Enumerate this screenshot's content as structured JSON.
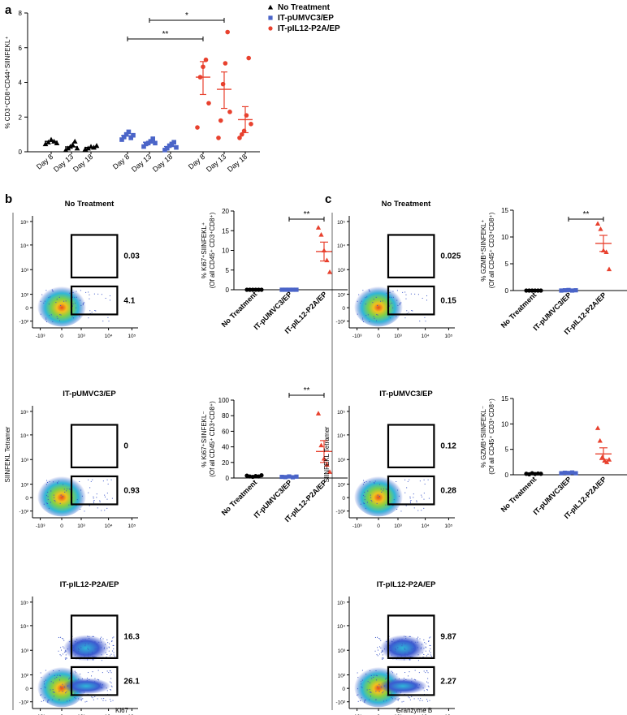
{
  "colors": {
    "no_treatment": "#000000",
    "pumvc3": "#4a64c8",
    "pil12": "#e8412e"
  },
  "panel_a": {
    "label": "a",
    "ylabel": "% CD3⁺CD8⁺CD44⁺SIINFEKL⁺",
    "legend": [
      {
        "name": "No Treatment",
        "marker": "triangle",
        "color": "#000000"
      },
      {
        "name": "IT-pUMVC3/EP",
        "marker": "square",
        "color": "#4a64c8"
      },
      {
        "name": "IT-pIL12-P2A/EP",
        "marker": "circle",
        "color": "#e8412e"
      }
    ],
    "significance": [
      {
        "label": "**",
        "from": "IT-pUMVC3/EP Day 8",
        "to": "IT-pIL12-P2A/EP Day 8"
      },
      {
        "label": "*",
        "from": "IT-pUMVC3/EP Day 13",
        "to": "IT-pIL12-P2A/EP Day 13"
      }
    ]
  },
  "panel_b": {
    "label": "b",
    "y_axis_label": "SIINFEKL Tetramer",
    "x_axis_label": "Ki67",
    "flow": [
      {
        "title": "No Treatment",
        "upper_gate": "0.03",
        "lower_gate": "4.1"
      },
      {
        "title": "IT-pUMVC3/EP",
        "upper_gate": "0",
        "lower_gate": "0.93"
      },
      {
        "title": "IT-pIL12-P2A/EP",
        "upper_gate": "16.3",
        "lower_gate": "26.1"
      }
    ],
    "sig_label": "**"
  },
  "panel_c": {
    "label": "c",
    "y_axis_label": "SIINFEKL Tetramer",
    "x_axis_label": "Granzyme B",
    "flow": [
      {
        "title": "No Treatment",
        "upper_gate": "0.025",
        "lower_gate": "0.15"
      },
      {
        "title": "IT-pUMVC3/EP",
        "upper_gate": "0.12",
        "lower_gate": "0.28"
      },
      {
        "title": "IT-pIL12-P2A/EP",
        "upper_gate": "9.87",
        "lower_gate": "2.27"
      }
    ],
    "sig_label": "**"
  },
  "flow_ticks": {
    "y": [
      "10⁵",
      "10⁴",
      "10³",
      "10²",
      "0",
      "-10²"
    ],
    "x": [
      "-10³",
      "0",
      "10³",
      "10⁴",
      "10⁵"
    ]
  },
  "chart_data": [
    {
      "id": "a",
      "type": "scatter",
      "title": "",
      "ylabel": "% CD3⁺CD8⁺CD44⁺SIINFEKL⁺",
      "ylim": [
        0,
        8
      ],
      "yticks": [
        0,
        2,
        4,
        6,
        8
      ],
      "groups": [
        {
          "series": "No Treatment",
          "category": "Day 8",
          "points": [
            0.45,
            0.55,
            0.7,
            0.6,
            0.5
          ],
          "mean": 0.6
        },
        {
          "series": "No Treatment",
          "category": "Day 13",
          "points": [
            0.1,
            0.2,
            0.3,
            0.4,
            0.6,
            0.2
          ],
          "mean": 0.28
        },
        {
          "series": "No Treatment",
          "category": "Day 18",
          "points": [
            0.15,
            0.2,
            0.3,
            0.25,
            0.35
          ],
          "mean": 0.25
        },
        {
          "series": "IT-pUMVC3/EP",
          "category": "Day 8",
          "points": [
            0.7,
            0.85,
            1.0,
            1.15,
            0.8,
            0.95
          ],
          "mean": 0.92
        },
        {
          "series": "IT-pUMVC3/EP",
          "category": "Day 13",
          "points": [
            0.3,
            0.45,
            0.5,
            0.6,
            0.75,
            0.5
          ],
          "mean": 0.55
        },
        {
          "series": "IT-pUMVC3/EP",
          "category": "Day 18",
          "points": [
            0.1,
            0.2,
            0.35,
            0.45,
            0.55,
            0.25
          ],
          "mean": 0.3
        },
        {
          "series": "IT-pIL12-P2A/EP",
          "category": "Day 8",
          "points": [
            1.4,
            4.3,
            4.9,
            5.3,
            2.8
          ],
          "mean": 4.3,
          "sem": [
            3.3,
            5.2
          ]
        },
        {
          "series": "IT-pIL12-P2A/EP",
          "category": "Day 13",
          "points": [
            0.8,
            1.8,
            3.9,
            5.1,
            6.9,
            2.3
          ],
          "mean": 3.6,
          "sem": [
            2.5,
            4.6
          ]
        },
        {
          "series": "IT-pIL12-P2A/EP",
          "category": "Day 18",
          "points": [
            0.8,
            1.0,
            1.2,
            2.1,
            5.4,
            1.6
          ],
          "mean": 1.85,
          "sem": [
            1.1,
            2.6
          ]
        }
      ]
    },
    {
      "id": "b-top",
      "type": "scatter",
      "ylabel": "% Ki67⁺SIINFEKL⁺ (Of all CD45⁺ CD3⁺CD8⁺)",
      "ylim": [
        0,
        20
      ],
      "yticks": [
        0,
        5,
        10,
        15,
        20
      ],
      "categories": [
        "No Treatment",
        "IT-pUMVC3/EP",
        "IT-pIL12-P2A/EP"
      ],
      "groups": [
        {
          "series": "No Treatment",
          "points": [
            0,
            0,
            0,
            0,
            0,
            0
          ],
          "mean": 0,
          "marker": "circle"
        },
        {
          "series": "IT-pUMVC3/EP",
          "points": [
            0,
            0,
            0,
            0,
            0
          ],
          "mean": 0,
          "marker": "square"
        },
        {
          "series": "IT-pIL12-P2A/EP",
          "points": [
            15.8,
            14.0,
            10.0,
            7.5,
            4.5
          ],
          "mean": 9.7,
          "sem": [
            7.3,
            12.1
          ],
          "marker": "triangle"
        }
      ]
    },
    {
      "id": "b-bottom",
      "type": "scatter",
      "ylabel": "% Ki67⁺SIINFEKL⁻ (Of all CD45⁺ CD3⁺CD8⁺)",
      "ylim": [
        0,
        100
      ],
      "yticks": [
        0,
        20,
        40,
        60,
        80,
        100
      ],
      "categories": [
        "No Treatment",
        "IT-pUMVC3/EP",
        "IT-pIL12-P2A/EP"
      ],
      "groups": [
        {
          "series": "No Treatment",
          "points": [
            3,
            2,
            1.5,
            2.5,
            2,
            3.5
          ],
          "mean": 2.5,
          "marker": "circle"
        },
        {
          "series": "IT-pUMVC3/EP",
          "points": [
            1.5,
            1.2,
            2,
            1,
            1.8
          ],
          "mean": 1.5,
          "marker": "square"
        },
        {
          "series": "IT-pIL12-P2A/EP",
          "points": [
            83,
            42,
            25,
            17,
            8
          ],
          "mean": 34,
          "sem": [
            20,
            48
          ],
          "marker": "triangle"
        }
      ]
    },
    {
      "id": "c-top",
      "type": "scatter",
      "ylabel": "% GZMB⁺SIINFEKL⁺ (Of all CD45⁺ CD3⁺CD8⁺)",
      "ylim": [
        0,
        15
      ],
      "yticks": [
        0,
        5,
        10,
        15
      ],
      "categories": [
        "No Treatment",
        "IT-pUMVC3/EP",
        "IT-pIL12-P2A/EP"
      ],
      "groups": [
        {
          "series": "No Treatment",
          "points": [
            0,
            0,
            0,
            0,
            0,
            0
          ],
          "mean": 0,
          "marker": "circle"
        },
        {
          "series": "IT-pUMVC3/EP",
          "points": [
            0,
            0.05,
            0.1,
            0,
            0.05
          ],
          "mean": 0.05,
          "marker": "square"
        },
        {
          "series": "IT-pIL12-P2A/EP",
          "points": [
            12.5,
            11.5,
            7.5,
            7.2,
            4.0
          ],
          "mean": 8.8,
          "sem": [
            7.3,
            10.3
          ],
          "marker": "triangle"
        }
      ]
    },
    {
      "id": "c-bottom",
      "type": "scatter",
      "ylabel": "% GZMB⁺SIINFEKL⁻ (Of all CD45⁺ CD3⁺CD8⁺)",
      "ylim": [
        0,
        15
      ],
      "yticks": [
        0,
        5,
        10,
        15
      ],
      "categories": [
        "No Treatment",
        "IT-pUMVC3/EP",
        "IT-pIL12-P2A/EP"
      ],
      "groups": [
        {
          "series": "No Treatment",
          "points": [
            0.2,
            0.1,
            0.3,
            0.15,
            0.25,
            0.2
          ],
          "mean": 0.2,
          "marker": "circle"
        },
        {
          "series": "IT-pUMVC3/EP",
          "points": [
            0.3,
            0.4,
            0.35,
            0.45,
            0.3
          ],
          "mean": 0.35,
          "marker": "square"
        },
        {
          "series": "IT-pIL12-P2A/EP",
          "points": [
            9.2,
            6.7,
            3.5,
            2.8,
            2.5,
            3.0
          ],
          "mean": 4.1,
          "sem": [
            3.0,
            5.3
          ],
          "marker": "triangle"
        }
      ]
    }
  ]
}
